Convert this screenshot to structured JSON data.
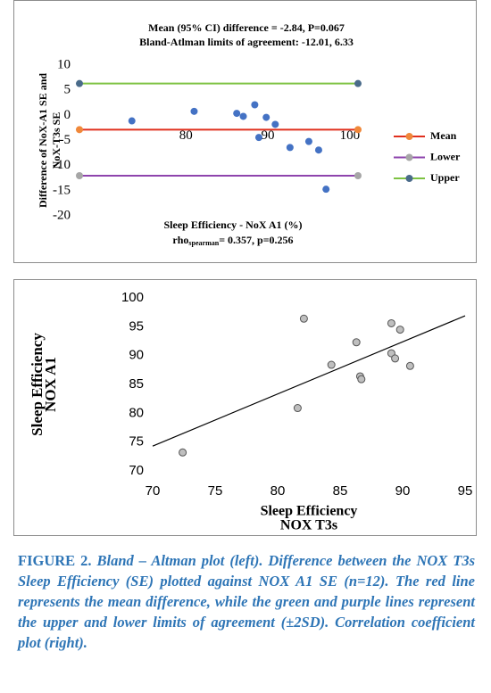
{
  "chart_data": [
    {
      "type": "scatter",
      "title": "Mean (95% CI) difference = -2.84, P=0.067",
      "subtitle": "Bland-Atlman limits of agreement: -12.01, 6.33",
      "x_label": "Sleep Efficiency - NoX A1 (%)",
      "stat_label": [
        "rho",
        "spearman",
        "= 0.357, p=0.256"
      ],
      "y_label": [
        "Difference of NoX-A1 SE and",
        "NoX-T3s SE"
      ],
      "xlim": [
        67,
        101
      ],
      "xticks": [
        80,
        90,
        100
      ],
      "ylim": [
        -20,
        10
      ],
      "yticks": [
        -20,
        -15,
        -10,
        -5,
        0,
        5,
        10
      ],
      "points": {
        "color": "#4472c4",
        "x": [
          73.4,
          81.0,
          86.2,
          87.0,
          88.4,
          88.9,
          89.8,
          90.9,
          92.7,
          95.0,
          96.2,
          97.1
        ],
        "y": [
          -1.1,
          0.8,
          0.4,
          -0.2,
          2.1,
          -4.4,
          -0.4,
          -1.8,
          -6.4,
          -5.2,
          -6.9,
          -14.7
        ]
      },
      "series": [
        {
          "name": "Mean",
          "color": "#e0301e",
          "marker_color": "#f0883a",
          "x": [
            67,
            101
          ],
          "y": [
            -2.84,
            -2.84
          ]
        },
        {
          "name": "Lower",
          "color": "#8e44ad",
          "marker_color": "#a6a6a6",
          "x": [
            67,
            101
          ],
          "y": [
            -12.01,
            -12.01
          ]
        },
        {
          "name": "Upper",
          "color": "#7dc242",
          "marker_color": "#4a6b8a",
          "x": [
            67,
            101
          ],
          "y": [
            6.33,
            6.33
          ]
        }
      ],
      "legend": "right"
    },
    {
      "type": "scatter",
      "x_label": [
        "Sleep Efficiency",
        "NOX T3s"
      ],
      "y_label": [
        "Sleep Efficiency",
        "NOX A1"
      ],
      "xlim": [
        70,
        95
      ],
      "xticks": [
        70,
        75,
        80,
        85,
        90,
        95
      ],
      "ylim": [
        70,
        100
      ],
      "yticks": [
        70,
        75,
        80,
        85,
        90,
        95,
        100
      ],
      "points": {
        "color": "#bfbfbf",
        "x": [
          72.4,
          81.6,
          82.1,
          84.3,
          86.3,
          86.6,
          86.7,
          89.1,
          89.1,
          89.4,
          89.8,
          90.6
        ],
        "y": [
          73.2,
          80.9,
          96.4,
          88.4,
          92.3,
          86.4,
          85.9,
          95.6,
          90.4,
          89.5,
          94.5,
          88.2
        ]
      },
      "series": [
        {
          "color": "#000000",
          "x": [
            70,
            95
          ],
          "y": [
            74.3,
            96.9
          ]
        }
      ]
    }
  ],
  "caption": {
    "label": "FIGURE 2.",
    "text": "Bland – Altman plot (left). Difference between the NOX T3s Sleep Efficiency (SE) plotted against NOX A1 SE (n=12). The red line represents the mean difference, while the green and purple lines represent the upper and lower limits of agreement (±2SD). Correlation coefficient plot (right)."
  }
}
